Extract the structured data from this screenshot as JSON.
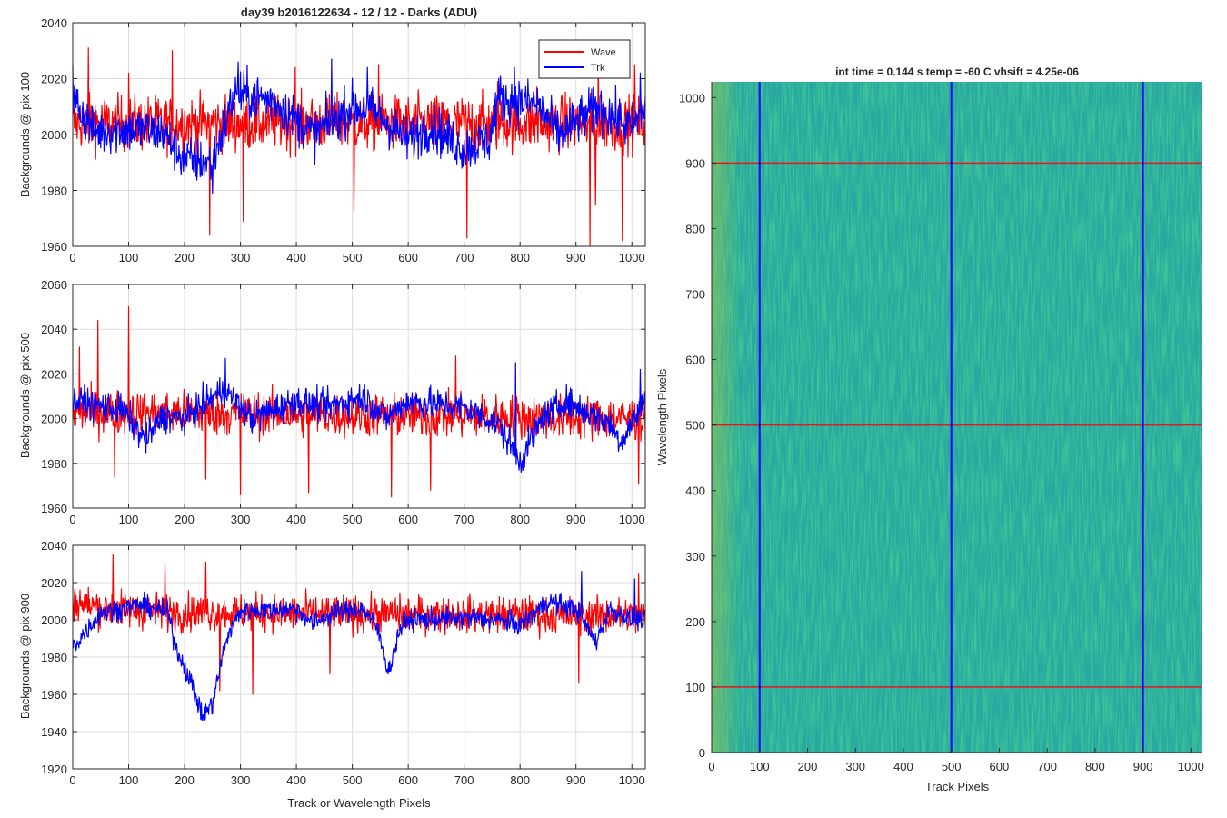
{
  "figure": {
    "title": "day39 b2016122634 - 12 / 12 - Darks (ADU)"
  },
  "chart_data": [
    {
      "type": "line",
      "xlabel": "",
      "ylabel": "Backgrounds @ pix 100",
      "xlim": [
        0,
        1024
      ],
      "ylim": [
        1960,
        2040
      ],
      "xticks": [
        0,
        100,
        200,
        300,
        400,
        500,
        600,
        700,
        800,
        900,
        1000
      ],
      "yticks": [
        1960,
        1980,
        2000,
        2020,
        2040
      ],
      "grid": true,
      "legend": {
        "placement": "top-right",
        "entries": [
          "Wave",
          "Trk"
        ]
      },
      "series": [
        {
          "name": "Wave",
          "color": "#ff0000",
          "mean": 2004,
          "noise": 7,
          "spikes": [
            [
              28,
              2031
            ],
            [
              100,
              2022
            ],
            [
              178,
              2030
            ],
            [
              245,
              1964
            ],
            [
              305,
              1969
            ],
            [
              398,
              2024
            ],
            [
              503,
              1972
            ],
            [
              547,
              2025
            ],
            [
              705,
              1963
            ],
            [
              760,
              2019
            ],
            [
              830,
              2017
            ],
            [
              925,
              1960
            ],
            [
              935,
              1975
            ],
            [
              940,
              2025
            ],
            [
              983,
              1962
            ],
            [
              1005,
              2025
            ]
          ],
          "profile": [
            [
              0,
              2004
            ],
            [
              1024,
              2004
            ]
          ]
        },
        {
          "name": "Trk",
          "color": "#0000ff",
          "mean": 2006,
          "noise": 6,
          "spikes": [
            [
              0,
              2025
            ],
            [
              296,
              2026
            ],
            [
              463,
              2027
            ],
            [
              527,
              2024
            ],
            [
              790,
              2024
            ],
            [
              1015,
              2022
            ],
            [
              250,
              1979
            ]
          ],
          "profile": [
            [
              0,
              2013
            ],
            [
              40,
              2001
            ],
            [
              90,
              2002
            ],
            [
              160,
              2001
            ],
            [
              200,
              1991
            ],
            [
              250,
              1990
            ],
            [
              290,
              2015
            ],
            [
              360,
              2012
            ],
            [
              430,
              2000
            ],
            [
              500,
              2010
            ],
            [
              540,
              2008
            ],
            [
              600,
              1998
            ],
            [
              640,
              2003
            ],
            [
              700,
              1995
            ],
            [
              745,
              1998
            ],
            [
              760,
              2013
            ],
            [
              830,
              2011
            ],
            [
              870,
              2000
            ],
            [
              940,
              2010
            ],
            [
              1000,
              2002
            ],
            [
              1024,
              2010
            ]
          ]
        }
      ]
    },
    {
      "type": "line",
      "xlabel": "",
      "ylabel": "Backgrounds @ pix 500",
      "xlim": [
        0,
        1024
      ],
      "ylim": [
        1960,
        2060
      ],
      "xticks": [
        0,
        100,
        200,
        300,
        400,
        500,
        600,
        700,
        800,
        900,
        1000
      ],
      "yticks": [
        1960,
        1980,
        2000,
        2020,
        2040,
        2060
      ],
      "grid": true,
      "series": [
        {
          "name": "Wave",
          "color": "#ff0000",
          "mean": 2001,
          "noise": 7,
          "spikes": [
            [
              12,
              2032
            ],
            [
              45,
              2044
            ],
            [
              100,
              2050
            ],
            [
              75,
              1974
            ],
            [
              238,
              1973
            ],
            [
              300,
              1966
            ],
            [
              422,
              1967
            ],
            [
              570,
              1965
            ],
            [
              640,
              1968
            ],
            [
              685,
              2028
            ],
            [
              1012,
              1971
            ]
          ],
          "profile": [
            [
              0,
              2003
            ],
            [
              1024,
              2000
            ]
          ]
        },
        {
          "name": "Trk",
          "color": "#0000ff",
          "mean": 2002,
          "noise": 5,
          "spikes": [
            [
              273,
              2027
            ],
            [
              792,
              2025
            ],
            [
              1015,
              2022
            ]
          ],
          "profile": [
            [
              0,
              2008
            ],
            [
              90,
              2004
            ],
            [
              130,
              1990
            ],
            [
              160,
              2001
            ],
            [
              200,
              2000
            ],
            [
              270,
              2013
            ],
            [
              320,
              2000
            ],
            [
              400,
              2008
            ],
            [
              450,
              2005
            ],
            [
              520,
              2010
            ],
            [
              560,
              2000
            ],
            [
              600,
              2008
            ],
            [
              700,
              2005
            ],
            [
              760,
              1998
            ],
            [
              800,
              1981
            ],
            [
              840,
              2000
            ],
            [
              880,
              2008
            ],
            [
              960,
              1998
            ],
            [
              980,
              1990
            ],
            [
              1024,
              2008
            ]
          ]
        }
      ]
    },
    {
      "type": "line",
      "xlabel": "Track or Wavelength Pixels",
      "ylabel": "Backgrounds @ pix 900",
      "xlim": [
        0,
        1024
      ],
      "ylim": [
        1920,
        2040
      ],
      "xticks": [
        0,
        100,
        200,
        300,
        400,
        500,
        600,
        700,
        800,
        900,
        1000
      ],
      "yticks": [
        1920,
        1940,
        1960,
        1980,
        2000,
        2020,
        2040
      ],
      "grid": true,
      "series": [
        {
          "name": "Wave",
          "color": "#ff0000",
          "mean": 2004,
          "noise": 7,
          "spikes": [
            [
              72,
              2035
            ],
            [
              165,
              2030
            ],
            [
              238,
              2031
            ],
            [
              263,
              1962
            ],
            [
              322,
              1960
            ],
            [
              460,
              1971
            ],
            [
              905,
              1966
            ],
            [
              1012,
              2025
            ]
          ],
          "profile": [
            [
              0,
              2010
            ],
            [
              60,
              2006
            ],
            [
              200,
              2004
            ],
            [
              600,
              2003
            ],
            [
              1024,
              2002
            ]
          ]
        },
        {
          "name": "Trk",
          "color": "#0000ff",
          "mean": 2000,
          "noise": 4,
          "spikes": [
            [
              910,
              2026
            ],
            [
              1005,
              2022
            ]
          ],
          "profile": [
            [
              0,
              1985
            ],
            [
              50,
              2004
            ],
            [
              120,
              2008
            ],
            [
              170,
              2004
            ],
            [
              185,
              1985
            ],
            [
              210,
              1968
            ],
            [
              232,
              1948
            ],
            [
              250,
              1955
            ],
            [
              275,
              1990
            ],
            [
              300,
              2005
            ],
            [
              400,
              2006
            ],
            [
              430,
              1998
            ],
            [
              470,
              2004
            ],
            [
              520,
              2006
            ],
            [
              545,
              1995
            ],
            [
              565,
              1972
            ],
            [
              585,
              1995
            ],
            [
              600,
              2000
            ],
            [
              700,
              2001
            ],
            [
              760,
              2000
            ],
            [
              800,
              1997
            ],
            [
              850,
              2010
            ],
            [
              900,
              2006
            ],
            [
              935,
              1988
            ],
            [
              960,
              2006
            ],
            [
              1000,
              2000
            ],
            [
              1024,
              2000
            ]
          ]
        }
      ]
    },
    {
      "type": "heatmap",
      "title": "int time = 0.144 s   temp = -60 C   vhsift = 4.25e-06",
      "xlabel": "Track Pixels",
      "ylabel": "Wavelength Pixels",
      "xlim": [
        0,
        1024
      ],
      "ylim": [
        0,
        1024
      ],
      "xticks": [
        0,
        100,
        200,
        300,
        400,
        500,
        600,
        700,
        800,
        900,
        1000
      ],
      "yticks": [
        0,
        100,
        200,
        300,
        400,
        500,
        600,
        700,
        800,
        900,
        1000
      ],
      "colormap": [
        "#1e9fb4",
        "#2fae95",
        "#9cc64a"
      ],
      "vertical_lines": {
        "color": "#0000ff",
        "x": [
          100,
          500,
          900
        ]
      },
      "horizontal_lines": {
        "color": "#e8161d",
        "y": [
          100,
          500,
          900
        ]
      }
    }
  ]
}
